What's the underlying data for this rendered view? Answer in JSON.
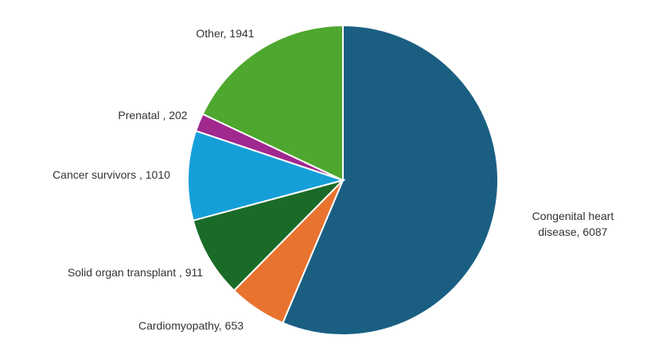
{
  "chart_data": {
    "type": "pie",
    "categories": [
      "Congenital heart disease",
      "Cardiomyopathy",
      "Solid organ transplant",
      "Cancer survivors",
      "Prenatal",
      "Other"
    ],
    "values": [
      6087,
      653,
      911,
      1010,
      202,
      1941
    ],
    "value_labels": [
      ", 6087",
      ", 653",
      " , 911",
      " , 1010",
      " , 202",
      ", 1941"
    ],
    "colors": [
      "#1a5f82",
      "#e8732f",
      "#1b6b28",
      "#159fd8",
      "#a0288f",
      "#4ea72e"
    ]
  }
}
